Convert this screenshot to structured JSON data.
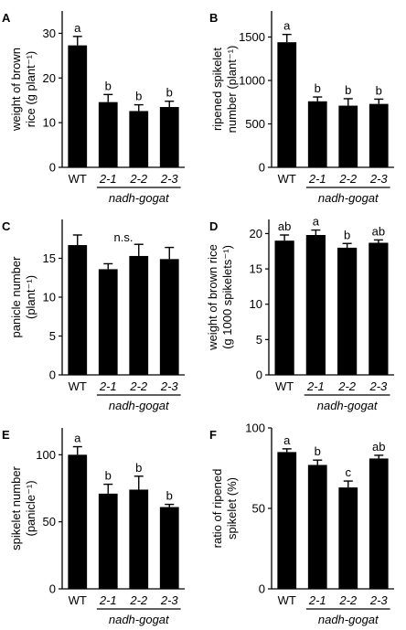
{
  "chart_data": [
    {
      "panel": "A",
      "type": "bar",
      "ylabel_lines": [
        "weight of brown",
        "rice (g plant⁻¹)"
      ],
      "categories": [
        "WT",
        "2-1",
        "2-2",
        "2-3"
      ],
      "group_label": "nadh-gogat",
      "ylim": [
        0,
        35
      ],
      "yticks": [
        0,
        10,
        20,
        30
      ],
      "values": [
        27.3,
        14.6,
        12.6,
        13.5
      ],
      "errors": [
        2.0,
        1.7,
        1.4,
        1.3
      ],
      "letters": [
        "a",
        "b",
        "b",
        "b"
      ]
    },
    {
      "panel": "B",
      "type": "bar",
      "ylabel_lines": [
        "ripened spikelet",
        "number (plant⁻¹)"
      ],
      "categories": [
        "WT",
        "2-1",
        "2-2",
        "2-3"
      ],
      "group_label": "nadh-gogat",
      "ylim": [
        0,
        1800
      ],
      "yticks": [
        0,
        500,
        1000,
        1500
      ],
      "values": [
        1440,
        760,
        710,
        730
      ],
      "errors": [
        90,
        50,
        80,
        55
      ],
      "letters": [
        "a",
        "b",
        "b",
        "b"
      ]
    },
    {
      "panel": "C",
      "type": "bar",
      "ylabel_lines": [
        "panicle number",
        "(plant⁻¹)"
      ],
      "categories": [
        "WT",
        "2-1",
        "2-2",
        "2-3"
      ],
      "group_label": "nadh-gogat",
      "ylim": [
        0,
        20
      ],
      "yticks": [
        0,
        5,
        10,
        15
      ],
      "values": [
        16.7,
        13.6,
        15.3,
        14.9
      ],
      "errors": [
        1.3,
        0.7,
        1.5,
        1.5
      ],
      "letters": [],
      "annotation": "n.s."
    },
    {
      "panel": "D",
      "type": "bar",
      "ylabel_lines": [
        "weight of brown rice",
        "(g 1000 spikelets⁻¹)"
      ],
      "categories": [
        "WT",
        "2-1",
        "2-2",
        "2-3"
      ],
      "group_label": "nadh-gogat",
      "ylim": [
        0,
        22
      ],
      "yticks": [
        0,
        5,
        10,
        15,
        20
      ],
      "values": [
        19.0,
        19.8,
        18.0,
        18.7
      ],
      "errors": [
        0.8,
        0.7,
        0.6,
        0.4
      ],
      "letters": [
        "ab",
        "a",
        "b",
        "ab"
      ]
    },
    {
      "panel": "E",
      "type": "bar",
      "ylabel_lines": [
        "spikelet number",
        "(panicle⁻¹)"
      ],
      "categories": [
        "WT",
        "2-1",
        "2-2",
        "2-3"
      ],
      "group_label": "nadh-gogat",
      "ylim": [
        0,
        120
      ],
      "yticks": [
        0,
        50,
        100
      ],
      "values": [
        100,
        71,
        74,
        61
      ],
      "errors": [
        6,
        7,
        10,
        2
      ],
      "letters": [
        "a",
        "b",
        "b",
        "b"
      ]
    },
    {
      "panel": "F",
      "type": "bar",
      "ylabel_lines": [
        "ratio of ripened",
        "spikelet (%)"
      ],
      "categories": [
        "WT",
        "2-1",
        "2-2",
        "2-3"
      ],
      "group_label": "nadh-gogat",
      "ylim": [
        0,
        100
      ],
      "yticks": [
        0,
        50,
        100
      ],
      "values": [
        85,
        77,
        63,
        81
      ],
      "errors": [
        2,
        3,
        4,
        2
      ],
      "letters": [
        "a",
        "b",
        "c",
        "ab"
      ]
    }
  ]
}
